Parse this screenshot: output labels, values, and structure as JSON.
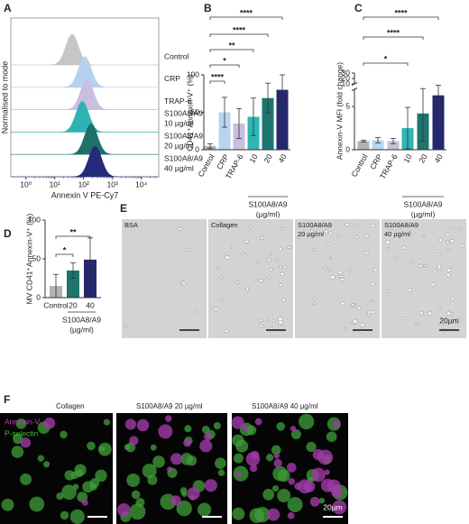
{
  "panel_labels": [
    "A",
    "B",
    "C",
    "D",
    "E",
    "F"
  ],
  "chart_data": [
    {
      "type": "density",
      "xlabel": "Annexin V PE-Cy7",
      "ylabel": "Normalised to mode",
      "xscale": "log",
      "xlim": [
        0.3,
        40000
      ],
      "xticks": [
        {
          "value": 1,
          "label": "10⁰"
        },
        {
          "value": 10,
          "label": "10¹"
        },
        {
          "value": 100,
          "label": "10²"
        },
        {
          "value": 1000,
          "label": "10³"
        },
        {
          "value": 10000,
          "label": "10⁴"
        }
      ],
      "series": [
        {
          "name": [
            "Control"
          ],
          "color": "#c6c6c6",
          "peak": 40
        },
        {
          "name": [
            "CRP"
          ],
          "color": "#b7d0ee",
          "peak": 110
        },
        {
          "name": [
            "TRAP-6"
          ],
          "color": "#cbbfe0",
          "peak": 130
        },
        {
          "name": [
            "S100A8/A9",
            "10 µg/ml"
          ],
          "color": "#2fb3b0",
          "peak": 90
        },
        {
          "name": [
            "S100A8/A9",
            "20 µg/ml"
          ],
          "color": "#1f6f6b",
          "peak": 180
        },
        {
          "name": [
            "S100A8/A9",
            "40 µg/ml"
          ],
          "color": "#232a7a",
          "peak": 250
        }
      ]
    },
    {
      "type": "bar",
      "ylabel": "CD41⁺Annexin-V⁺ (%)",
      "categories": [
        "Control",
        "CRP",
        "TRAP-6",
        "10",
        "20",
        "40"
      ],
      "group_categories": [
        "10",
        "20",
        "40"
      ],
      "group_label": [
        "S100A8/A9",
        "(µg/ml)"
      ],
      "values": [
        5,
        50,
        35,
        44,
        69,
        80
      ],
      "errors": [
        3,
        20,
        20,
        25,
        20,
        20
      ],
      "colors": [
        "#b3b3b3",
        "#b7d5f0",
        "#c9bedd",
        "#2fb5b3",
        "#1f7470",
        "#25286f"
      ],
      "ylim": [
        0,
        100
      ],
      "yticks": [
        0,
        50,
        100
      ],
      "significance": [
        {
          "pair": [
            "Control",
            "40"
          ],
          "label": "****"
        },
        {
          "pair": [
            "Control",
            "20"
          ],
          "label": "****"
        },
        {
          "pair": [
            "Control",
            "10"
          ],
          "label": "**"
        },
        {
          "pair": [
            "Control",
            "TRAP-6"
          ],
          "label": "*"
        },
        {
          "pair": [
            "Control",
            "CRP"
          ],
          "label": "****"
        }
      ]
    },
    {
      "type": "bar",
      "ylabel": "Annexin-V MFI (fold change)",
      "categories": [
        "Control",
        "CRP",
        "TRAP-6",
        "10",
        "20",
        "40"
      ],
      "group_categories": [
        "10",
        "20",
        "40"
      ],
      "group_label": [
        "S100A8/A9",
        "(µg/ml)"
      ],
      "values": [
        1,
        1.1,
        1,
        2.5,
        4.2,
        6.3
      ],
      "errors": [
        0.1,
        0.3,
        0.3,
        2.4,
        3.2,
        3
      ],
      "colors": [
        "#b3b3b3",
        "#b7d5f0",
        "#c9bedd",
        "#2fb5b3",
        "#1f7470",
        "#25286f"
      ],
      "ylim": [
        0,
        30
      ],
      "ybreak": [
        7,
        10
      ],
      "yticks": [
        0,
        5,
        10,
        20,
        30
      ],
      "significance": [
        {
          "pair": [
            "Control",
            "40"
          ],
          "label": "****"
        },
        {
          "pair": [
            "Control",
            "20"
          ],
          "label": "****"
        },
        {
          "pair": [
            "Control",
            "10"
          ],
          "label": "*"
        }
      ]
    },
    {
      "type": "bar",
      "ylabel": "MV CD41⁺Annexin-V⁺ (%)",
      "categories": [
        "Control",
        "20",
        "40"
      ],
      "group_categories": [
        "20",
        "40"
      ],
      "group_label": [
        "S100A8/A9",
        "(µg/ml)"
      ],
      "values": [
        15,
        35,
        49
      ],
      "errors": [
        15,
        10,
        28
      ],
      "colors": [
        "#b3b3b3",
        "#1f7470",
        "#25286f"
      ],
      "ylim": [
        0,
        100
      ],
      "yticks": [
        0,
        50,
        100
      ],
      "significance": [
        {
          "pair": [
            "Control",
            "40"
          ],
          "label": "**"
        },
        {
          "pair": [
            "Control",
            "20"
          ],
          "label": "*"
        }
      ]
    }
  ],
  "images_e": {
    "labels": [
      [
        "BSA"
      ],
      [
        "Collagen"
      ],
      [
        "S100A8/A9",
        "20 µg/ml"
      ],
      [
        "S100A8/A9",
        "40 µg/ml"
      ]
    ],
    "scale_bar": "20µm"
  },
  "images_f": {
    "labels": [
      "Collagen",
      "S100A8/A9 20 µg/ml",
      "S100A8/A9 40 µg/ml"
    ],
    "channels": [
      "Annexin-V",
      "P-selectin"
    ],
    "scale_bar": "20µm"
  }
}
